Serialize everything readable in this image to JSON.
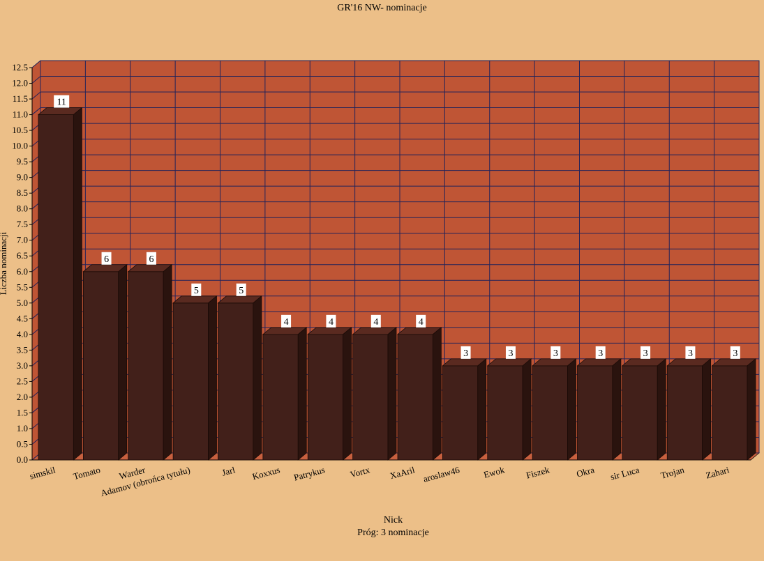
{
  "chart_data": {
    "type": "bar",
    "title": "GR'16 NW- nominacje",
    "xlabel": "Nick",
    "subtitle": "Próg: 3 nominacje",
    "ylabel": "Liczba nominacji",
    "categories": [
      "simskil",
      "Tomato",
      "Warder",
      "Adamov (obrońca tytułu)",
      "Jarl",
      "Koxxus",
      "Patrykus",
      "Vortx",
      "XaAril",
      "aroslaw46",
      "Ewok",
      "Fiszek",
      "Okra",
      "sir Luca",
      "Trojan",
      "Zahari"
    ],
    "values": [
      11,
      6,
      6,
      5,
      5,
      4,
      4,
      4,
      4,
      3,
      3,
      3,
      3,
      3,
      3,
      3
    ],
    "ylim": [
      0,
      12.5
    ],
    "ytick_step": 0.5,
    "grid": true,
    "data_labels": true,
    "colors": {
      "background": "#ecbf88",
      "plot_wall": "#bf5535",
      "grid": "#23235a",
      "bar_front": "#42201a",
      "bar_top": "#5a2a20",
      "bar_side": "#2a130e",
      "floor": "#c8603f"
    }
  }
}
